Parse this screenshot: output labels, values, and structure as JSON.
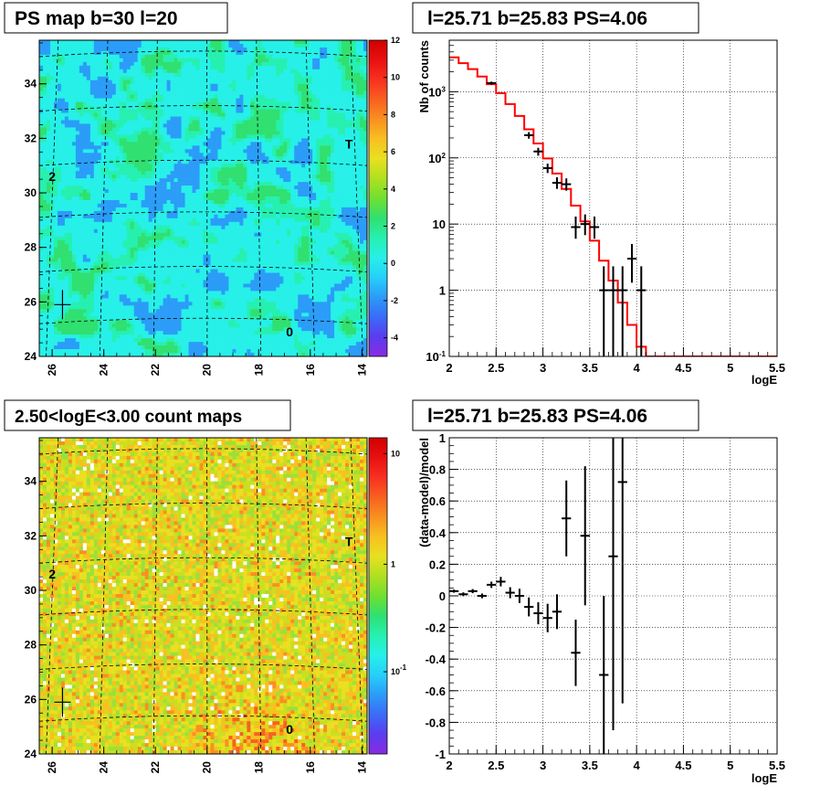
{
  "chart_data": [
    {
      "type": "heatmap",
      "id": "psmap",
      "title": "PS map b=30 l=20",
      "x_ticks": [
        26,
        24,
        22,
        20,
        18,
        16,
        14
      ],
      "y_ticks": [
        24,
        26,
        28,
        30,
        32,
        34
      ],
      "xlim": [
        26.5,
        13.8
      ],
      "ylim": [
        24,
        35.6
      ],
      "colorbar": {
        "range": [
          -5,
          12
        ],
        "ticks": [
          -4,
          -2,
          0,
          2,
          4,
          6,
          8,
          10,
          12
        ],
        "colors": [
          "#8a2be2",
          "#5a3cf0",
          "#3a6cf8",
          "#2b9cf8",
          "#26d0f8",
          "#26f0e8",
          "#26f0b0",
          "#30e070",
          "#70e030",
          "#b0e020",
          "#e8e020",
          "#f8c020",
          "#f89020",
          "#f86020",
          "#f83020",
          "#e81010",
          "#d00000"
        ]
      },
      "sources": [
        {
          "label": "T",
          "l": 14.5,
          "b": 31.8
        },
        {
          "label": "2",
          "l": 26.0,
          "b": 30.6
        },
        {
          "label": "0",
          "l": 16.8,
          "b": 24.9
        }
      ],
      "cross": {
        "l": 25.6,
        "b": 25.9
      }
    },
    {
      "type": "heatmap",
      "id": "countmap",
      "title": "2.50<logE<3.00 count maps",
      "x_ticks": [
        26,
        24,
        22,
        20,
        18,
        16,
        14
      ],
      "y_ticks": [
        24,
        26,
        28,
        30,
        32,
        34
      ],
      "xlim": [
        26.5,
        13.8
      ],
      "ylim": [
        24,
        35.6
      ],
      "colorbar": {
        "ticks": [
          {
            "label": "10",
            "frac": 0.95
          },
          {
            "label": "1",
            "frac": 0.6
          },
          {
            "label": "10",
            "sup": "-1",
            "frac": 0.26
          }
        ]
      },
      "sources": [
        {
          "label": "T",
          "l": 14.5,
          "b": 31.8
        },
        {
          "label": "2",
          "l": 26.0,
          "b": 30.6
        },
        {
          "label": "0",
          "l": 16.8,
          "b": 24.9
        }
      ],
      "cross": {
        "l": 25.6,
        "b": 25.9
      }
    },
    {
      "type": "line",
      "id": "spectrum",
      "title": "l=25.71 b=25.83 PS=4.06",
      "xlabel": "logE",
      "ylabel": "Nb of counts",
      "xlim": [
        2,
        5.5
      ],
      "ylim": [
        0.1,
        6000
      ],
      "yscale": "log",
      "x_ticks": [
        "2",
        "2.5",
        "3",
        "3.5",
        "4",
        "4.5",
        "5",
        "5.5"
      ],
      "y_ticks": [
        {
          "v": 0.1,
          "label": "10",
          "sup": "-1"
        },
        {
          "v": 1,
          "label": "1"
        },
        {
          "v": 10,
          "label": "10"
        },
        {
          "v": 100,
          "label": "10",
          "sup": "2"
        },
        {
          "v": 1000,
          "label": "10",
          "sup": "3"
        }
      ],
      "grid": true,
      "model_bins_x": [
        2.0,
        2.1,
        2.2,
        2.3,
        2.4,
        2.5,
        2.6,
        2.7,
        2.8,
        2.9,
        3.0,
        3.1,
        3.2,
        3.3,
        3.4,
        3.5,
        3.6,
        3.7,
        3.8,
        3.9,
        4.0,
        4.1,
        5.5
      ],
      "model_values": [
        3300,
        2700,
        2200,
        1700,
        1300,
        950,
        650,
        430,
        270,
        165,
        98,
        58,
        34,
        19,
        11,
        5.6,
        2.8,
        1.4,
        0.65,
        0.3,
        0.14,
        0.1
      ],
      "data_points": [
        {
          "x": 2.45,
          "y": 1350,
          "lo": 1280,
          "hi": 1420
        },
        {
          "x": 2.85,
          "y": 220,
          "lo": 195,
          "hi": 245
        },
        {
          "x": 2.95,
          "y": 125,
          "lo": 108,
          "hi": 142
        },
        {
          "x": 3.05,
          "y": 70,
          "lo": 59,
          "hi": 82
        },
        {
          "x": 3.15,
          "y": 42,
          "lo": 34,
          "hi": 51
        },
        {
          "x": 3.25,
          "y": 40,
          "lo": 32,
          "hi": 49
        },
        {
          "x": 3.35,
          "y": 9,
          "lo": 6,
          "hi": 13
        },
        {
          "x": 3.45,
          "y": 10,
          "lo": 6.8,
          "hi": 14
        },
        {
          "x": 3.55,
          "y": 9,
          "lo": 6,
          "hi": 13
        },
        {
          "x": 3.65,
          "y": 1,
          "lo": 0.1,
          "hi": 2.3
        },
        {
          "x": 3.75,
          "y": 1,
          "lo": 0.1,
          "hi": 2.3
        },
        {
          "x": 3.85,
          "y": 1,
          "lo": 0.1,
          "hi": 2.3
        },
        {
          "x": 3.95,
          "y": 3,
          "lo": 1.3,
          "hi": 5
        },
        {
          "x": 4.05,
          "y": 1,
          "lo": 0.1,
          "hi": 2.3
        }
      ]
    },
    {
      "type": "scatter",
      "id": "residuals",
      "title": "l=25.71 b=25.83 PS=4.06",
      "xlabel": "logE",
      "ylabel": "(data-model)/model",
      "xlim": [
        2,
        5.5
      ],
      "ylim": [
        -1,
        1
      ],
      "x_ticks": [
        "2",
        "2.5",
        "3",
        "3.5",
        "4",
        "4.5",
        "5",
        "5.5"
      ],
      "y_ticks": [
        "-1",
        "-0.8",
        "-0.6",
        "-0.4",
        "-0.2",
        "0",
        "0.2",
        "0.4",
        "0.6",
        "0.8",
        "1"
      ],
      "grid": true,
      "data_points": [
        {
          "x": 2.05,
          "y": 0.03,
          "err": 0.01
        },
        {
          "x": 2.15,
          "y": 0.01,
          "err": 0.012
        },
        {
          "x": 2.25,
          "y": 0.03,
          "err": 0.013
        },
        {
          "x": 2.35,
          "y": 0.0,
          "err": 0.015
        },
        {
          "x": 2.45,
          "y": 0.07,
          "err": 0.02
        },
        {
          "x": 2.55,
          "y": 0.09,
          "err": 0.03
        },
        {
          "x": 2.65,
          "y": 0.02,
          "err": 0.035
        },
        {
          "x": 2.75,
          "y": 0.0,
          "err": 0.045
        },
        {
          "x": 2.85,
          "y": -0.07,
          "err": 0.06
        },
        {
          "x": 2.95,
          "y": -0.11,
          "err": 0.07
        },
        {
          "x": 3.05,
          "y": -0.14,
          "err": 0.09
        },
        {
          "x": 3.15,
          "y": -0.1,
          "err": 0.11
        },
        {
          "x": 3.25,
          "y": 0.49,
          "err": 0.24
        },
        {
          "x": 3.35,
          "y": -0.36,
          "err": 0.21
        },
        {
          "x": 3.45,
          "y": 0.38,
          "err": 0.44
        },
        {
          "x": 3.65,
          "y": -0.5,
          "err": 0.5
        },
        {
          "x": 3.75,
          "y": 0.25,
          "err": 1.1
        },
        {
          "x": 3.85,
          "y": 0.72,
          "err": 1.4
        }
      ]
    }
  ]
}
